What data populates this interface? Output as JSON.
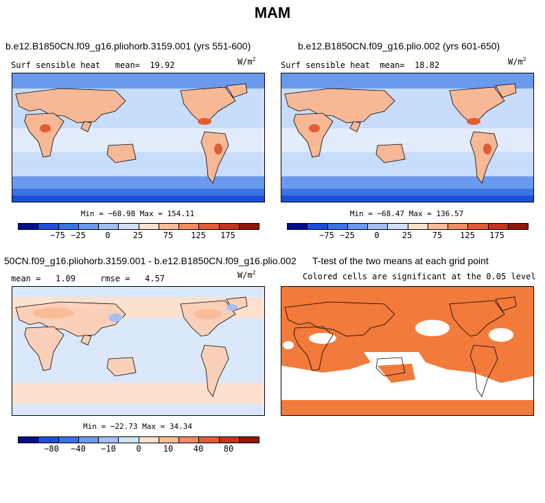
{
  "page": {
    "title": "MAM"
  },
  "colors": {
    "diverging": [
      "#00108a",
      "#1c4fd6",
      "#3a74e3",
      "#6a9aee",
      "#a3c0f4",
      "#d0e1fb",
      "#fde1cf",
      "#f9bb98",
      "#f28c62",
      "#e25c35",
      "#c3361d",
      "#8e1908"
    ],
    "signif": "#f27a3a",
    "ocean_sensible": "#c8dcfb",
    "land_sensible": "#f7b896",
    "ocean_diff": "#dbe8fc",
    "land_diff": "#fad0b8"
  },
  "chart_data": [
    {
      "type": "heatmap",
      "panel": "top-left",
      "title": "b.e12.B1850CN.f09_g16.pliohorb.3159.001 (yrs 551-600)",
      "variable": "Surf sensible heat",
      "mean_label": "mean=",
      "mean": "19.92",
      "units": "W/m",
      "units_exp": "2",
      "min_max": "Min = −68.98 Max = 154.11",
      "min": -68.98,
      "max": 154.11,
      "colorbar_ticks": [
        "−75",
        "−25",
        "0",
        "25",
        "75",
        "125",
        "175"
      ]
    },
    {
      "type": "heatmap",
      "panel": "top-right",
      "title": "b.e12.B1850CN.f09_g16.plio.002 (yrs 601-650)",
      "variable": "Surf sensible heat",
      "mean_label": "mean=",
      "mean": "18.82",
      "units": "W/m",
      "units_exp": "2",
      "min_max": "Min = −68.47 Max = 136.57",
      "min": -68.47,
      "max": 136.57,
      "colorbar_ticks": [
        "−75",
        "−25",
        "0",
        "25",
        "75",
        "125",
        "175"
      ]
    },
    {
      "type": "heatmap",
      "panel": "bottom-left",
      "title": "50CN.f09_g16.pliohorb.3159.001 - b.e12.B1850CN.f09_g16.plio.002",
      "mean_label": "mean =",
      "mean": "1.09",
      "rmse_label": "rmse =",
      "rmse": "4.57",
      "units": "W/m",
      "units_exp": "2",
      "min_max": "Min = −22.73 Max = 34.34",
      "min": -22.73,
      "max": 34.34,
      "colorbar_ticks": [
        "−80",
        "−40",
        "−10",
        "0",
        "10",
        "40",
        "80"
      ]
    },
    {
      "type": "heatmap",
      "panel": "bottom-right",
      "title": "T-test of the two means at each grid point",
      "subtitle": "Colored cells are significant at the 0.05 level"
    }
  ]
}
